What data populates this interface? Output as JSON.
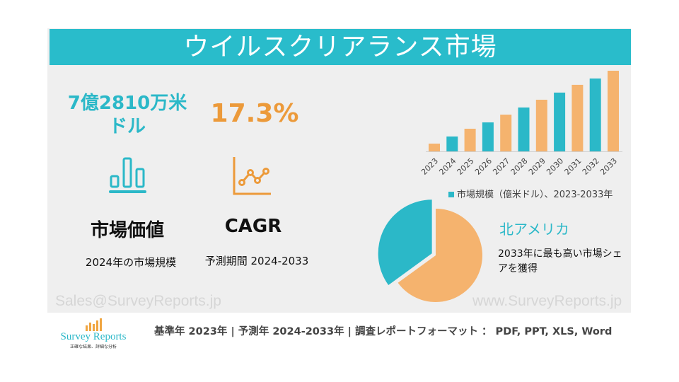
{
  "header": {
    "title": "ウイルスクリアランス市場"
  },
  "market_value": {
    "value": "7億2810万米ドル",
    "label": "市場価値",
    "sub": "2024年の市場規模",
    "icon": "bar-chart-icon"
  },
  "cagr": {
    "value": "17.3%",
    "label": "CAGR",
    "sub": "予測期間 2024-2033",
    "icon": "line-chart-icon"
  },
  "colors": {
    "teal": "#2bb8c8",
    "orange": "#f5b36e",
    "accent_orange": "#ec9a3a"
  },
  "chart_data": [
    {
      "type": "bar",
      "categories": [
        "2023",
        "2024",
        "2025",
        "2026",
        "2027",
        "2028",
        "2029",
        "2030",
        "2031",
        "2032",
        "2033"
      ],
      "values": [
        3.8,
        7.3,
        11.1,
        14.2,
        18.0,
        21.5,
        25.3,
        28.8,
        32.6,
        35.7,
        39.5
      ],
      "bar_colors": [
        "#f5b36e",
        "#2bb8c8",
        "#f5b36e",
        "#2bb8c8",
        "#f5b36e",
        "#2bb8c8",
        "#f5b36e",
        "#2bb8c8",
        "#f5b36e",
        "#2bb8c8",
        "#f5b36e"
      ],
      "legend": "市場規模（億米ドル）、2023-2033年",
      "legend_position": "bottom",
      "grid": false
    },
    {
      "type": "pie",
      "values": [
        35,
        65
      ],
      "colors": [
        "#2bb8c8",
        "#f5b36e"
      ]
    }
  ],
  "region": {
    "name": "北アメリカ",
    "desc": "2033年に最も高い市場シェアを獲得"
  },
  "watermarks": {
    "email": "Sales@SurveyReports.jp",
    "web": "www.SurveyReports.jp"
  },
  "footer": {
    "text": "基準年 2023年 | 予測年 2024-2033年 | 調査レポートフォーマット ： PDF, PPT, XLS, Word"
  },
  "logo": {
    "name": "Survey Reports",
    "tagline": "正確な結果、詳細な分析"
  }
}
